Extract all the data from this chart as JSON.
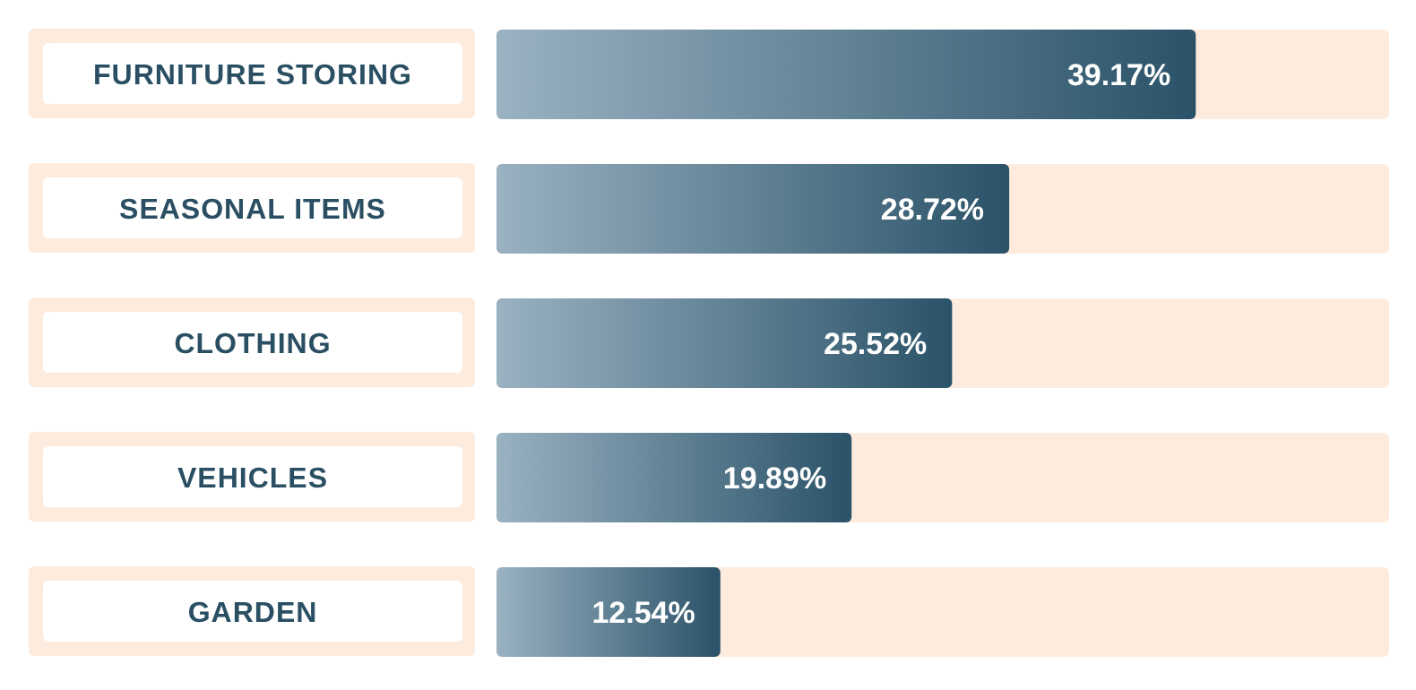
{
  "chart_data": {
    "type": "bar",
    "orientation": "horizontal",
    "categories": [
      "FURNITURE STORING",
      "SEASONAL ITEMS",
      "CLOTHING",
      "VEHICLES",
      "GARDEN"
    ],
    "values": [
      39.17,
      28.72,
      25.52,
      19.89,
      12.54
    ],
    "value_labels": [
      "39.17%",
      "28.72%",
      "25.52%",
      "19.89%",
      "12.54%"
    ],
    "color": "#2a5268",
    "xlim": [
      0,
      50
    ],
    "tick_labels": "y"
  }
}
